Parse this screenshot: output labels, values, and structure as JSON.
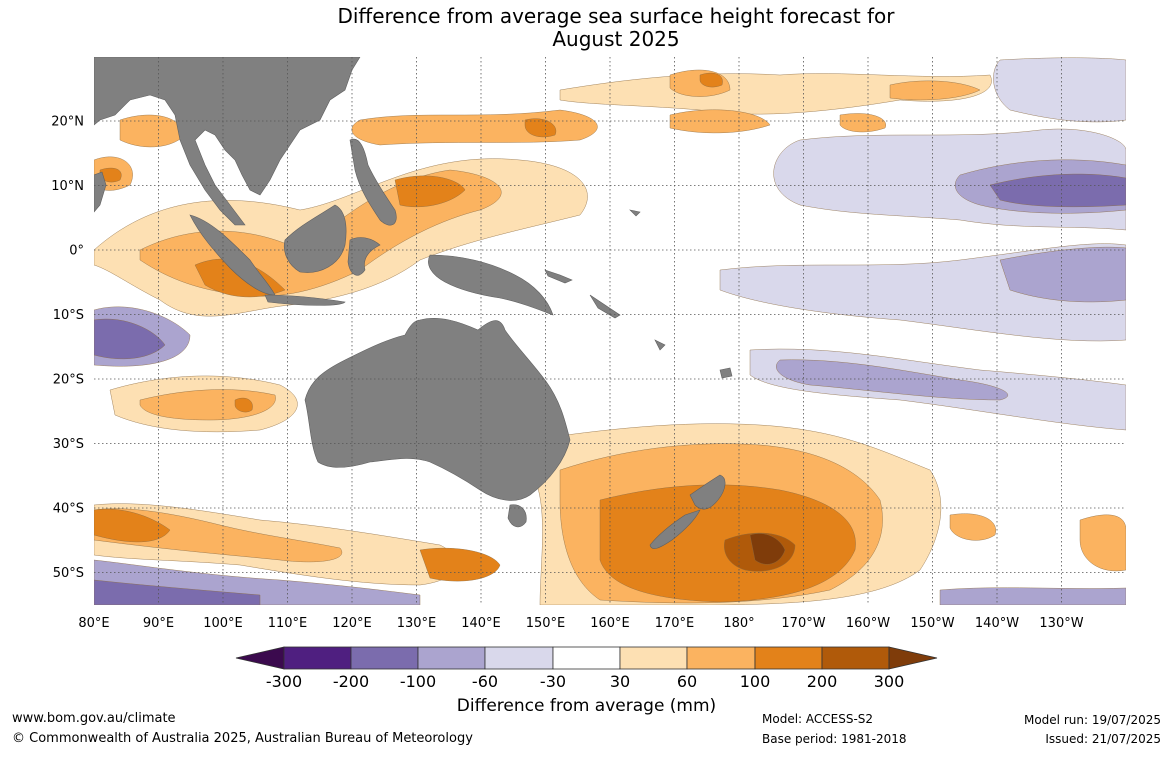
{
  "title": {
    "line1": "Difference from average sea surface height forecast for",
    "line2": "August 2025"
  },
  "map": {
    "lon_labels": [
      "80°E",
      "90°E",
      "100°E",
      "110°E",
      "120°E",
      "130°E",
      "140°E",
      "150°E",
      "160°E",
      "170°E",
      "180°",
      "170°W",
      "160°W",
      "150°W",
      "140°W",
      "130°W"
    ],
    "lat_labels": [
      "20°N",
      "10°N",
      "0°",
      "10°S",
      "20°S",
      "30°S",
      "40°S",
      "50°S"
    ],
    "lon_range": [
      80,
      240
    ],
    "lat_range": [
      -55,
      30
    ]
  },
  "colorbar": {
    "tick_labels": [
      "-300",
      "-200",
      "-100",
      "-60",
      "-30",
      "30",
      "60",
      "100",
      "200",
      "300"
    ],
    "colors": [
      "#3b0a4e",
      "#4f1f80",
      "#7b6cad",
      "#aba4cf",
      "#d9d8eb",
      "#ffffff",
      "#fde0b3",
      "#fbb360",
      "#e3821a",
      "#b05a0a",
      "#7f3c0a"
    ],
    "title": "Difference from average (mm)"
  },
  "footer": {
    "url": "www.bom.gov.au/climate",
    "copyright": "© Commonwealth of Australia 2025, Australian Bureau of Meteorology",
    "model": "Model: ACCESS-S2",
    "base_period": "Base period: 1981-2018",
    "model_run": "Model run: 19/07/2025",
    "issued": "Issued: 21/07/2025"
  },
  "colors": {
    "land": "#808080",
    "grid": "#555555"
  }
}
